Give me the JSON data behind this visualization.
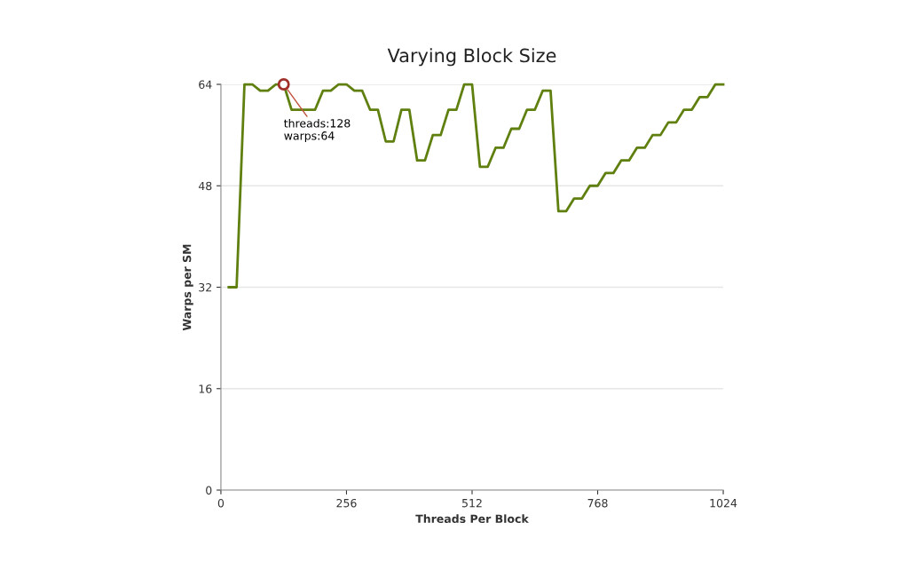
{
  "chart_data": {
    "type": "line",
    "title": "Varying Block Size",
    "xlabel": "Threads Per Block",
    "ylabel": "Warps per SM",
    "x": [
      16,
      32,
      48,
      64,
      80,
      96,
      112,
      128,
      144,
      160,
      176,
      192,
      208,
      224,
      240,
      256,
      272,
      288,
      304,
      320,
      336,
      352,
      368,
      384,
      400,
      416,
      432,
      448,
      464,
      480,
      496,
      512,
      528,
      544,
      560,
      576,
      592,
      608,
      624,
      640,
      656,
      672,
      688,
      704,
      720,
      736,
      752,
      768,
      784,
      800,
      816,
      832,
      848,
      864,
      880,
      896,
      912,
      928,
      944,
      960,
      976,
      992,
      1008,
      1024
    ],
    "series": [
      {
        "color": "#5f7f0f",
        "values": [
          32,
          32,
          64,
          64,
          63,
          63,
          64,
          64,
          60,
          60,
          60,
          60,
          63,
          63,
          64,
          64,
          63,
          63,
          60,
          60,
          55,
          55,
          60,
          60,
          52,
          52,
          56,
          56,
          60,
          60,
          64,
          64,
          51,
          51,
          54,
          54,
          57,
          57,
          60,
          60,
          63,
          63,
          44,
          44,
          46,
          46,
          48,
          48,
          50,
          50,
          52,
          52,
          54,
          54,
          56,
          56,
          58,
          58,
          60,
          60,
          62,
          62,
          64,
          64
        ]
      }
    ],
    "xlim": [
      0,
      1024
    ],
    "ylim": [
      0,
      64
    ],
    "xticks": [
      0,
      256,
      512,
      768,
      1024
    ],
    "yticks": [
      0,
      16,
      32,
      48,
      64
    ],
    "grid": "y",
    "legend": false,
    "marker": "none",
    "line_style": "solid",
    "annotations": [
      {
        "text": "threads:128\nwarps:64",
        "x": 128,
        "y": 64
      }
    ]
  }
}
